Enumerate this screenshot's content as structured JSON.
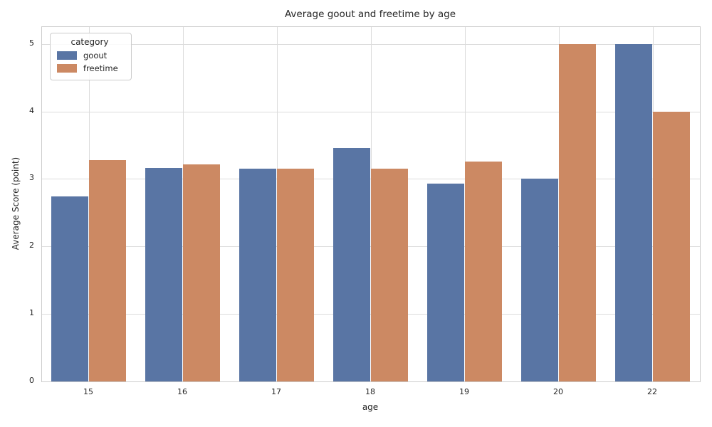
{
  "chart_data": {
    "type": "bar",
    "title": "Average goout and freetime by age",
    "xlabel": "age",
    "ylabel": "Average Score (point)",
    "categories": [
      "15",
      "16",
      "17",
      "18",
      "19",
      "20",
      "22"
    ],
    "series": [
      {
        "name": "goout",
        "color": "#5975A4",
        "values": [
          2.74,
          3.16,
          3.15,
          3.46,
          2.93,
          3.0,
          5.0
        ]
      },
      {
        "name": "freetime",
        "color": "#CC8963",
        "values": [
          3.28,
          3.22,
          3.15,
          3.15,
          3.26,
          5.0,
          4.0
        ]
      }
    ],
    "ylim": [
      0,
      5.25
    ],
    "yticks": [
      0,
      1,
      2,
      3,
      4,
      5
    ],
    "legend_title": "category",
    "legend_position": "upper left",
    "grid": true,
    "bar_group_width_fraction": 0.8
  },
  "colors": {
    "grid": "#dcdcdc",
    "axis_border": "#cccccc",
    "text": "#262626",
    "background": "#ffffff"
  }
}
